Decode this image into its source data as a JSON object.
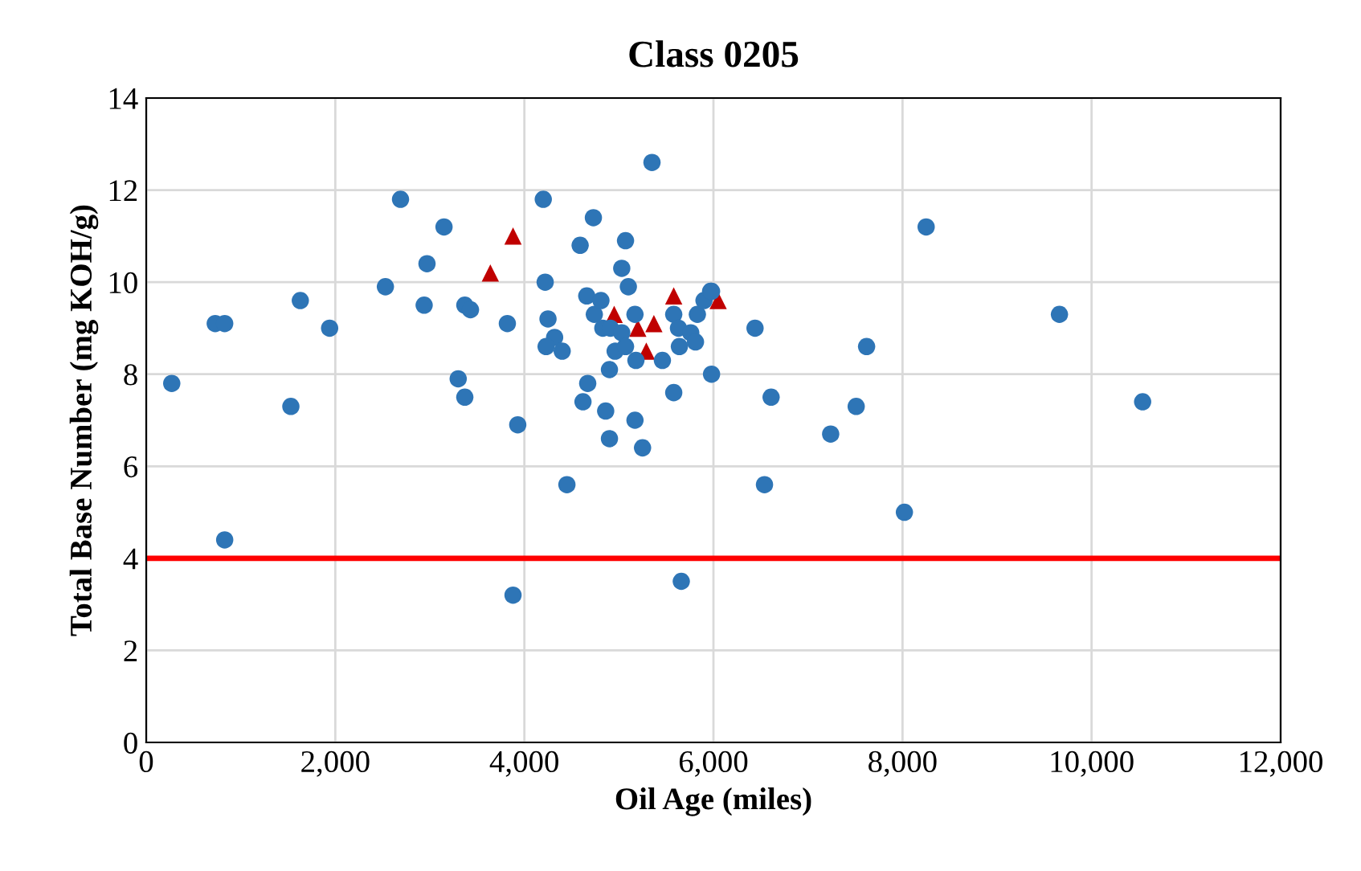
{
  "chart_data": {
    "type": "scatter",
    "title": "Class 0205",
    "xlabel": "Oil Age (miles)",
    "ylabel": "Total Base Number (mg KOH/g)",
    "xlim": [
      0,
      12000
    ],
    "ylim": [
      0,
      14
    ],
    "xticks": [
      0,
      {
        "value": 2000,
        "label": "2,000"
      },
      {
        "value": 4000,
        "label": "4,000"
      },
      {
        "value": 6000,
        "label": "6,000"
      },
      {
        "value": 8000,
        "label": "8,000"
      },
      {
        "value": 10000,
        "label": "10,000"
      },
      {
        "value": 12000,
        "label": "12,000"
      }
    ],
    "yticks": [
      0,
      2,
      4,
      6,
      8,
      10,
      12,
      14
    ],
    "grid": true,
    "ref_lines": [
      {
        "axis": "y",
        "value": 4,
        "color": "#ff0000"
      }
    ],
    "series": [
      {
        "color": "#c00000",
        "marker": "triangle",
        "x": [
          3640,
          3880,
          4950,
          5200,
          5370,
          5290,
          5580,
          6050
        ],
        "values": [
          10.2,
          11.0,
          9.3,
          9.0,
          9.1,
          8.5,
          9.7,
          9.6
        ]
      },
      {
        "color": "#2e75b6",
        "marker": "circle",
        "x": [
          270,
          730,
          830,
          830,
          1530,
          1630,
          1940,
          2530,
          2690,
          2970,
          2940,
          3150,
          3300,
          3370,
          3370,
          3430,
          3820,
          3880,
          3930,
          4200,
          4220,
          4250,
          4320,
          4230,
          4400,
          4450,
          4590,
          4620,
          4670,
          4660,
          4730,
          4740,
          4810,
          4830,
          4860,
          4900,
          4900,
          4910,
          4960,
          5030,
          5030,
          5070,
          5070,
          5100,
          5170,
          5170,
          5180,
          5250,
          5350,
          5460,
          5580,
          5580,
          5630,
          5640,
          5660,
          5760,
          5810,
          5830,
          5900,
          5970,
          5980,
          5980,
          6440,
          6540,
          6610,
          7240,
          7510,
          7620,
          8020,
          8250,
          9660,
          10540
        ],
        "values": [
          7.8,
          9.1,
          9.1,
          4.4,
          7.3,
          9.6,
          9.0,
          9.9,
          11.8,
          10.4,
          9.5,
          11.2,
          7.9,
          7.5,
          9.5,
          9.4,
          9.1,
          3.2,
          6.9,
          11.8,
          10.0,
          9.2,
          8.8,
          8.6,
          8.5,
          5.6,
          10.8,
          7.4,
          7.8,
          9.7,
          11.4,
          9.3,
          9.6,
          9.0,
          7.2,
          8.1,
          6.6,
          9.0,
          8.5,
          10.3,
          8.9,
          10.9,
          8.6,
          9.9,
          9.3,
          7.0,
          8.3,
          6.4,
          12.6,
          8.3,
          9.3,
          7.6,
          9.0,
          8.6,
          3.5,
          8.9,
          8.7,
          9.3,
          9.6,
          9.8,
          9.8,
          8.0,
          9.0,
          5.6,
          7.5,
          6.7,
          7.3,
          8.6,
          5.0,
          11.2,
          9.3,
          7.4
        ]
      }
    ]
  }
}
